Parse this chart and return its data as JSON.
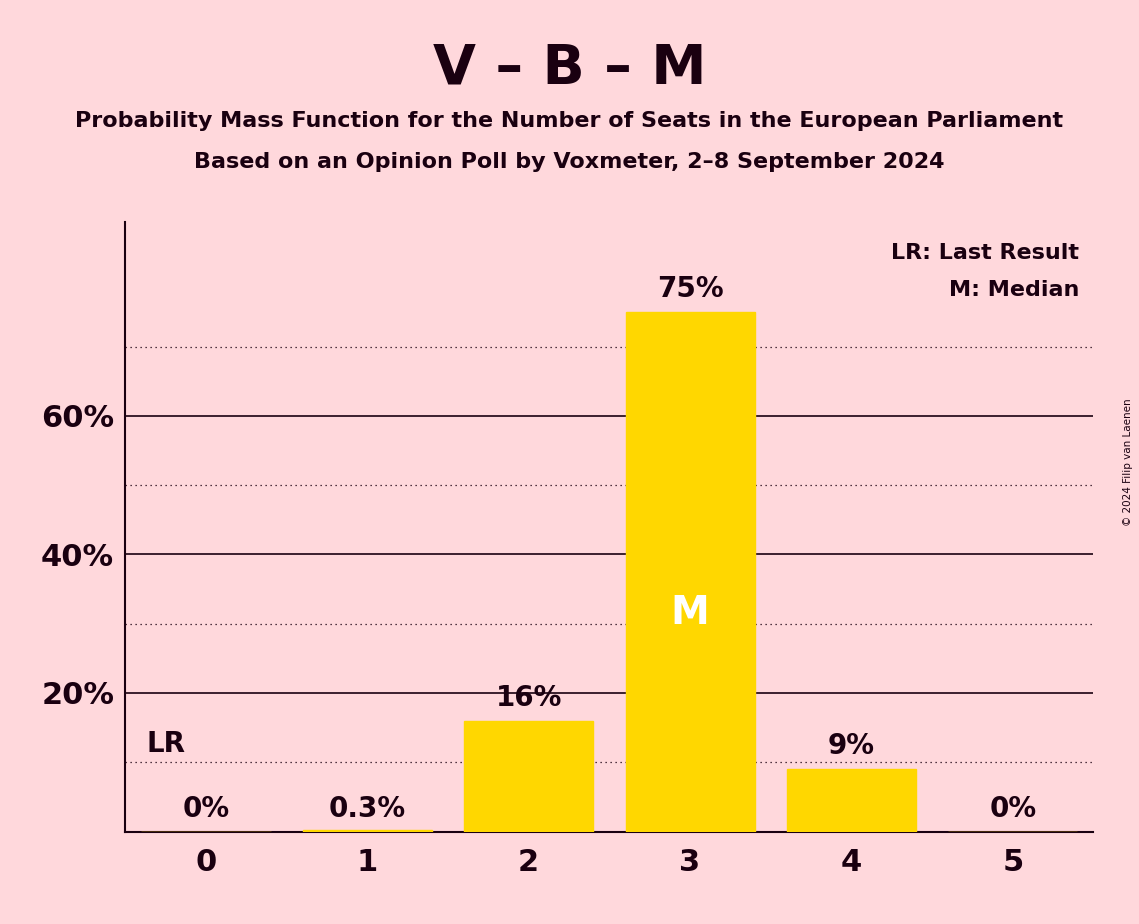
{
  "title": "V – B – M",
  "subtitle1": "Probability Mass Function for the Number of Seats in the European Parliament",
  "subtitle2": "Based on an Opinion Poll by Voxmeter, 2–8 September 2024",
  "copyright": "© 2024 Filip van Laenen",
  "categories": [
    0,
    1,
    2,
    3,
    4,
    5
  ],
  "values": [
    0.0,
    0.003,
    0.16,
    0.75,
    0.09,
    0.0
  ],
  "bar_labels": [
    "0%",
    "0.3%",
    "16%",
    "75%",
    "9%",
    "0%"
  ],
  "bar_color": "#FFD700",
  "background_color": "#FFD8DC",
  "text_color": "#1A0010",
  "solid_lines": [
    0.2,
    0.4,
    0.6
  ],
  "dotted_lines": [
    0.1,
    0.3,
    0.5,
    0.7
  ],
  "lr_value": 0.1,
  "lr_label": "LR",
  "median_bar": 3,
  "median_label": "M",
  "legend_lr": "LR: Last Result",
  "legend_m": "M: Median",
  "xlim": [
    -0.5,
    5.5
  ],
  "ylim": [
    0,
    0.88
  ],
  "bar_width": 0.8,
  "title_fontsize": 40,
  "subtitle_fontsize": 16,
  "tick_fontsize": 22,
  "label_fontsize": 20,
  "legend_fontsize": 16,
  "median_fontsize": 28,
  "lr_fontsize": 20
}
